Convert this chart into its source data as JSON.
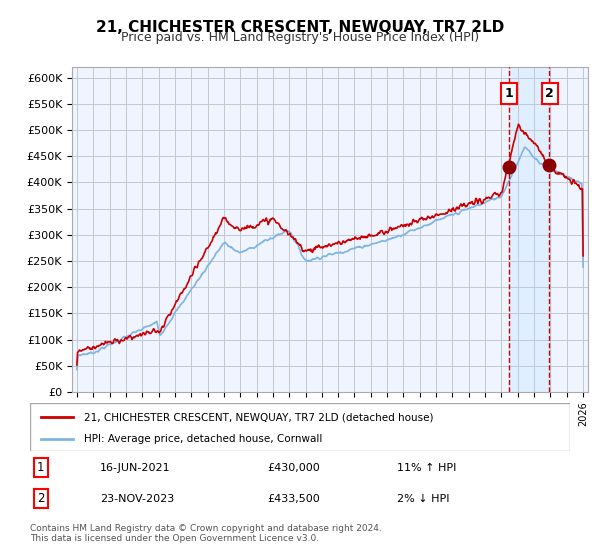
{
  "title": "21, CHICHESTER CRESCENT, NEWQUAY, TR7 2LD",
  "subtitle": "Price paid vs. HM Land Registry's House Price Index (HPI)",
  "legend_line1": "21, CHICHESTER CRESCENT, NEWQUAY, TR7 2LD (detached house)",
  "legend_line2": "HPI: Average price, detached house, Cornwall",
  "transaction1_label": "1",
  "transaction1_date": "16-JUN-2021",
  "transaction1_price": 430000,
  "transaction1_hpi": "11% ↑ HPI",
  "transaction2_label": "2",
  "transaction2_date": "23-NOV-2023",
  "transaction2_price": 433500,
  "transaction2_hpi": "2% ↓ HPI",
  "footer": "Contains HM Land Registry data © Crown copyright and database right 2024.\nThis data is licensed under the Open Government Licence v3.0.",
  "hpi_color": "#7eb4e2",
  "price_color": "#cc0000",
  "marker_color": "#8b0000",
  "vline_color": "#cc0000",
  "shade_color": "#ddeeff",
  "grid_color": "#c0c8d8",
  "background_color": "#f0f4ff",
  "ylim": [
    0,
    620000
  ],
  "yticks": [
    0,
    50000,
    100000,
    150000,
    200000,
    250000,
    300000,
    350000,
    400000,
    450000,
    500000,
    550000,
    600000
  ],
  "start_year": 1995,
  "end_year": 2026,
  "transaction1_x": 2021.46,
  "transaction2_x": 2023.9
}
